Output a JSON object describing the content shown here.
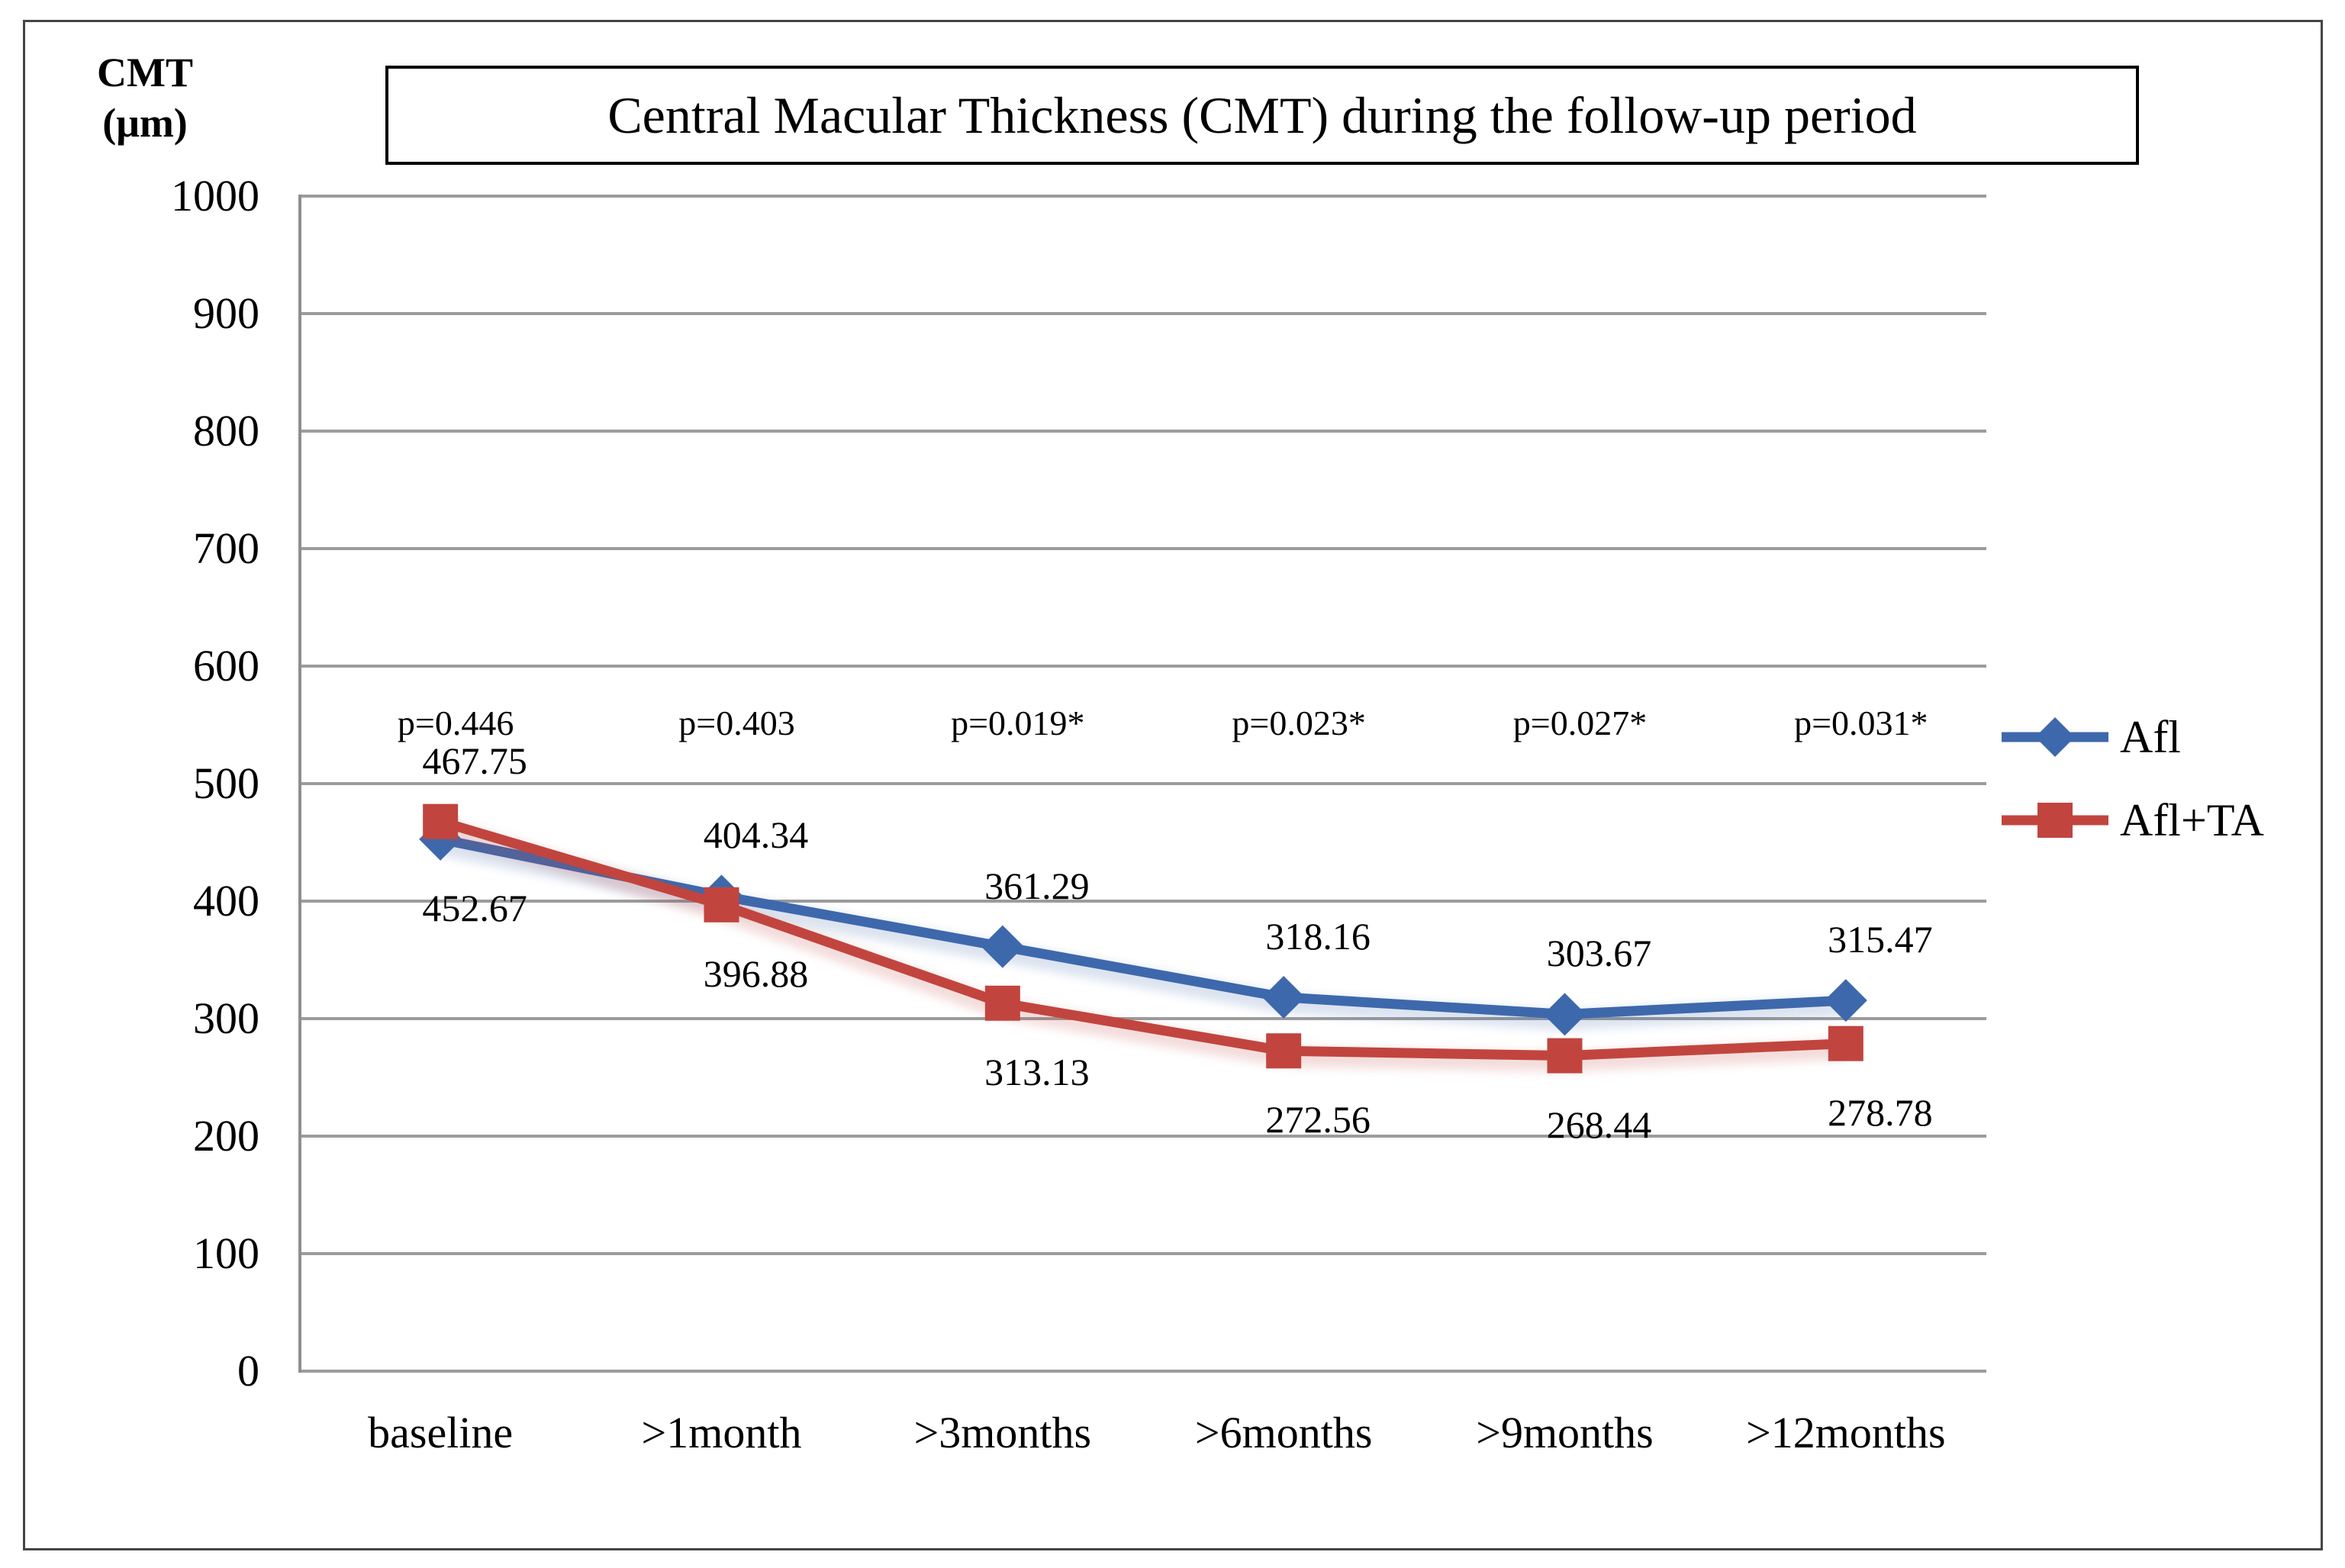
{
  "chart_data": {
    "type": "line",
    "title": "Central Macular Thickness (CMT) during the follow-up period",
    "y_axis_title_lines": [
      "CMT",
      "(μm)"
    ],
    "categories": [
      "baseline",
      ">1month",
      ">3months",
      ">6months",
      ">9months",
      ">12months"
    ],
    "series": [
      {
        "name": "Afl",
        "color": "#3E68AC",
        "marker": "diamond",
        "values": [
          452.67,
          404.34,
          361.29,
          318.16,
          303.67,
          315.47
        ],
        "label_sides": [
          "below",
          "above",
          "above",
          "above",
          "above",
          "above"
        ]
      },
      {
        "name": "Afl+TA",
        "color": "#C1453E",
        "marker": "square",
        "values": [
          467.75,
          396.88,
          313.13,
          272.56,
          268.44,
          278.78
        ],
        "label_sides": [
          "above",
          "below",
          "below",
          "below",
          "below",
          "below"
        ]
      }
    ],
    "p_values": [
      "p=0.446",
      "p=0.403",
      "p=0.019*",
      "p=0.023*",
      "p=0.027*",
      "p=0.031*"
    ],
    "yticks": [
      0,
      100,
      200,
      300,
      400,
      500,
      600,
      700,
      800,
      900,
      1000
    ],
    "ylim": [
      0,
      1000
    ],
    "grid": true,
    "legend_position": "right-middle",
    "colors": {
      "grid": "#9C9C9C",
      "axis": "#8F8F8F"
    }
  }
}
